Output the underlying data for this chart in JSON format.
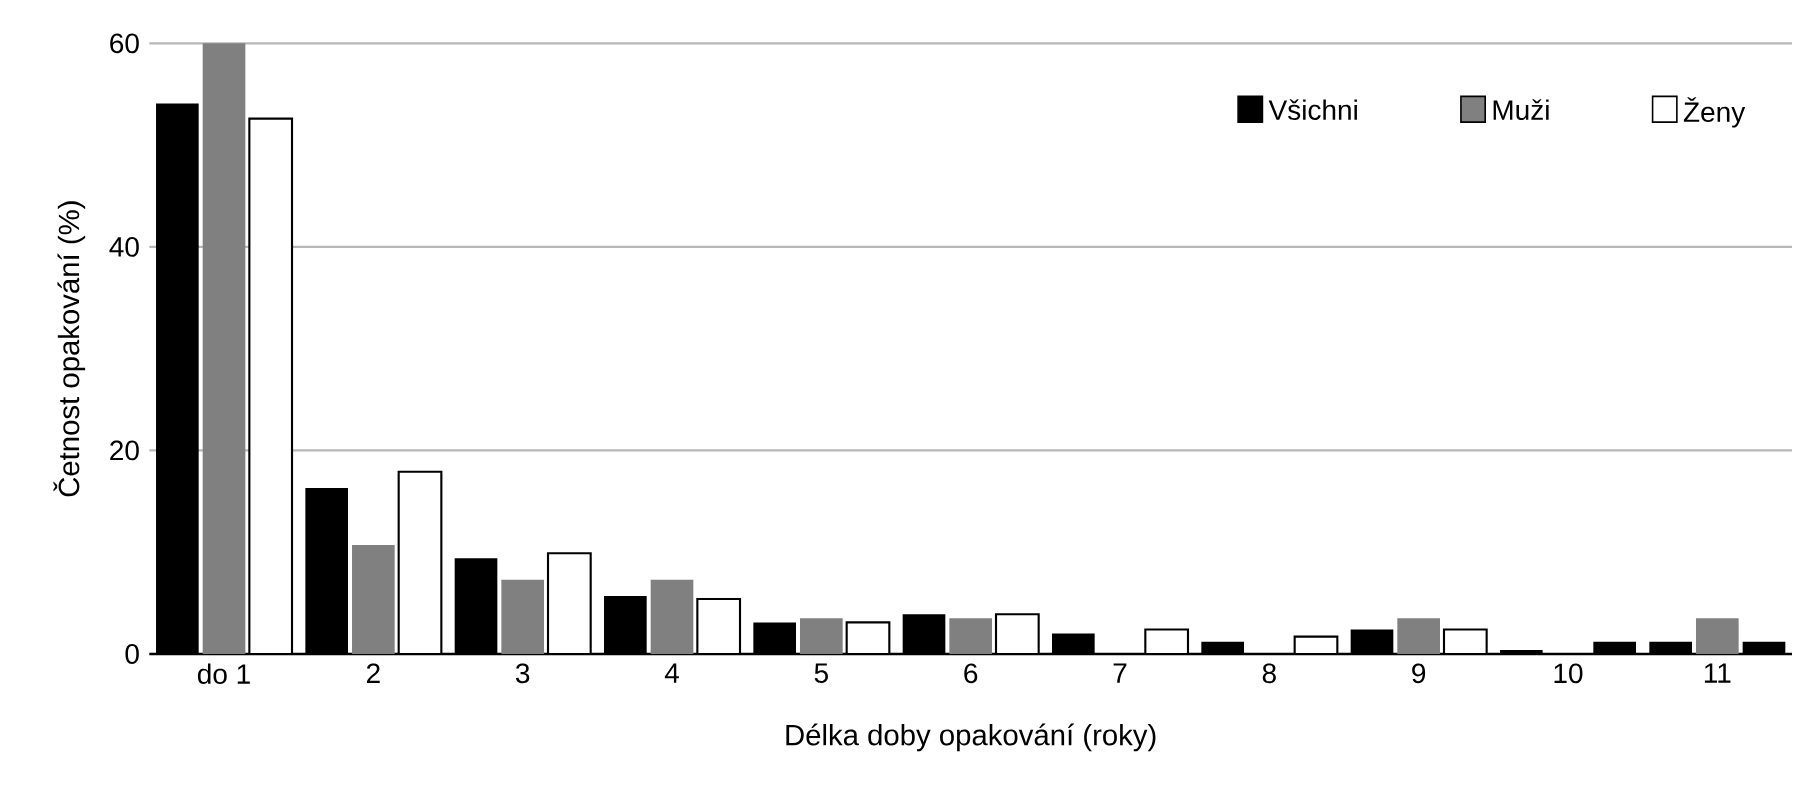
{
  "chart_data": {
    "type": "bar",
    "xlabel": "Délka doby opakování (roky)",
    "ylabel": "Četnost opakování (%)",
    "categories": [
      "do 1",
      "2",
      "3",
      "4",
      "5",
      "6",
      "7",
      "8",
      "9",
      "10",
      "11"
    ],
    "series": [
      {
        "name": "Všichni",
        "color": "#000000",
        "values": [
          54.1,
          16.3,
          9.4,
          5.7,
          3.1,
          3.9,
          2.0,
          1.2,
          2.4,
          0.4,
          1.2
        ]
      },
      {
        "name": "Muži",
        "color": "#808080",
        "values": [
          60,
          10.7,
          7.3,
          7.3,
          3.5,
          3.5,
          0,
          0,
          3.5,
          0,
          3.5
        ]
      },
      {
        "name": "Ženy",
        "color": "#ffffff",
        "colors": [
          "#ffffff",
          "#ffffff",
          "#ffffff",
          "#ffffff",
          "#ffffff",
          "#ffffff",
          "#ffffff",
          "#ffffff",
          "#ffffff",
          "#000000",
          "#000000"
        ],
        "values": [
          52.6,
          17.9,
          9.9,
          5.4,
          3.1,
          3.9,
          2.4,
          1.7,
          2.4,
          1.2,
          1.2
        ]
      }
    ],
    "ylim": [
      0,
      60
    ],
    "yticks": [
      0,
      20,
      40,
      60
    ],
    "grid": "y",
    "legend": "top right"
  }
}
